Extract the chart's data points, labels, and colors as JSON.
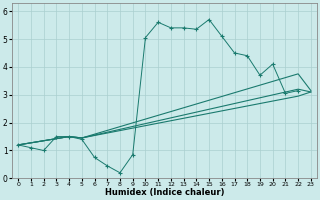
{
  "xlabel": "Humidex (Indice chaleur)",
  "background_color": "#cceaea",
  "line_color": "#1a7a6e",
  "xlim": [
    -0.5,
    23.5
  ],
  "ylim": [
    0,
    6.3
  ],
  "xticks": [
    0,
    1,
    2,
    3,
    4,
    5,
    6,
    7,
    8,
    9,
    10,
    11,
    12,
    13,
    14,
    15,
    16,
    17,
    18,
    19,
    20,
    21,
    22,
    23
  ],
  "yticks": [
    0,
    1,
    2,
    3,
    4,
    5,
    6
  ],
  "series": [
    {
      "x": [
        0,
        1,
        2,
        3,
        4,
        5,
        6,
        7,
        8,
        9,
        10,
        11,
        12,
        13,
        14,
        15,
        16,
        17,
        18,
        19,
        20,
        21,
        22
      ],
      "y": [
        1.2,
        1.1,
        1.0,
        1.5,
        1.5,
        1.4,
        0.75,
        0.45,
        0.2,
        0.85,
        5.05,
        5.6,
        5.4,
        5.4,
        5.35,
        5.7,
        5.1,
        4.5,
        4.4,
        3.7,
        4.1,
        3.05,
        3.15
      ],
      "has_markers": true
    },
    {
      "x": [
        0,
        4,
        5,
        22,
        23
      ],
      "y": [
        1.2,
        1.5,
        1.45,
        3.75,
        3.15
      ],
      "has_markers": false
    },
    {
      "x": [
        0,
        4,
        5,
        22,
        23
      ],
      "y": [
        1.2,
        1.5,
        1.45,
        3.2,
        3.1
      ],
      "has_markers": false
    },
    {
      "x": [
        0,
        4,
        5,
        22,
        23
      ],
      "y": [
        1.2,
        1.5,
        1.45,
        2.95,
        3.1
      ],
      "has_markers": false
    }
  ]
}
